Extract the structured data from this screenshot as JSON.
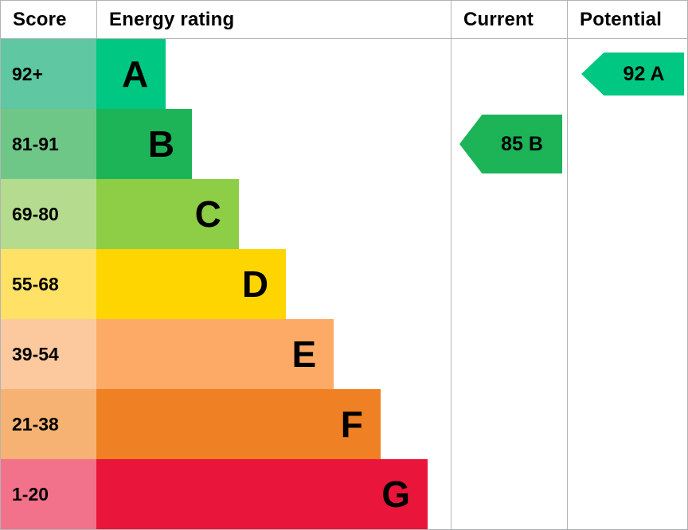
{
  "header": {
    "score": "Score",
    "energy_rating": "Energy rating",
    "current": "Current",
    "potential": "Potential"
  },
  "chart_data": {
    "type": "bar",
    "title": "Energy efficiency rating chart (EPC)",
    "orientation": "horizontal",
    "columns": [
      "Score",
      "Energy rating",
      "Current",
      "Potential"
    ],
    "bands": [
      {
        "letter": "A",
        "score_range": "92+",
        "bar_color": "#00c781",
        "score_bg": "#5fc7a1",
        "width_pct": 19.6
      },
      {
        "letter": "B",
        "score_range": "81-91",
        "bar_color": "#1db457",
        "score_bg": "#6fc787",
        "width_pct": 27.0
      },
      {
        "letter": "C",
        "score_range": "69-80",
        "bar_color": "#8dce46",
        "score_bg": "#b5dc8e",
        "width_pct": 40.2
      },
      {
        "letter": "D",
        "score_range": "55-68",
        "bar_color": "#ffd500",
        "score_bg": "#ffe166",
        "width_pct": 53.5
      },
      {
        "letter": "E",
        "score_range": "39-54",
        "bar_color": "#fcaa65",
        "score_bg": "#fcc99e",
        "width_pct": 67.0
      },
      {
        "letter": "F",
        "score_range": "21-38",
        "bar_color": "#ef8023",
        "score_bg": "#f5b272",
        "width_pct": 80.2
      },
      {
        "letter": "G",
        "score_range": "1-20",
        "bar_color": "#e9153b",
        "score_bg": "#f2718b",
        "width_pct": 93.5
      }
    ],
    "current": {
      "value": 85,
      "band": "B",
      "label": "85 B",
      "color": "#1db457",
      "row_band": "B"
    },
    "potential": {
      "value": 92,
      "band": "A",
      "label": "92 A",
      "color": "#00c781",
      "row_band": "A"
    }
  },
  "colors": {
    "border": "#b1b4b6",
    "text": "#000000",
    "background": "#ffffff"
  }
}
